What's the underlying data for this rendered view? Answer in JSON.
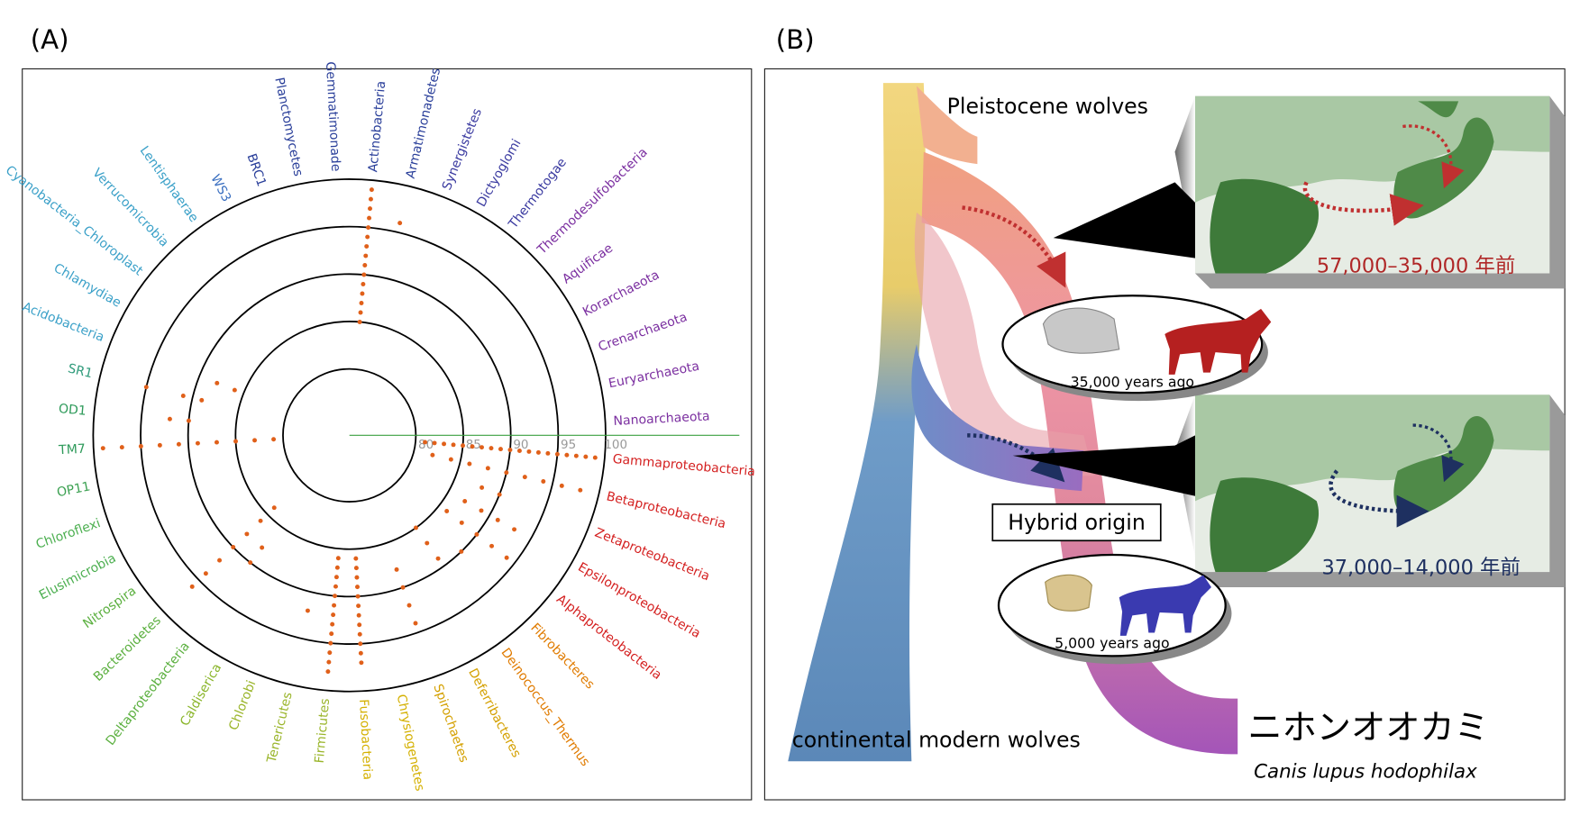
{
  "panel_a": {
    "label": "(A)",
    "chart_data": {
      "type": "radial",
      "rlim": [
        73,
        100
      ],
      "rings": [
        80,
        85,
        90,
        95,
        100
      ],
      "dot_color": "#e0601a",
      "taxa": [
        {
          "name": "Nanoarchaeota",
          "color": "#7b2fa0",
          "values": []
        },
        {
          "name": "Euryarchaeota",
          "color": "#7b2fa0",
          "values": []
        },
        {
          "name": "Crenarchaeota",
          "color": "#7b2fa0",
          "values": []
        },
        {
          "name": "Korarchaeota",
          "color": "#7b2fa0",
          "values": []
        },
        {
          "name": "Aquificae",
          "color": "#7b2fa0",
          "values": []
        },
        {
          "name": "Thermodesulfobacteria",
          "color": "#7b2fa0",
          "values": []
        },
        {
          "name": "Thermotogae",
          "color": "#3a3aa0",
          "values": []
        },
        {
          "name": "Dictyoglomi",
          "color": "#3a3aa0",
          "values": []
        },
        {
          "name": "Synergistetes",
          "color": "#3a3aa0",
          "values": []
        },
        {
          "name": "Armatimonadetes",
          "color": "#2a3f9a",
          "values": [
            96
          ]
        },
        {
          "name": "Actinobacteria",
          "color": "#2a3f9a",
          "values": [
            85,
            86,
            87,
            88,
            89,
            90,
            91,
            92,
            93,
            94,
            95,
            96,
            97,
            98,
            99
          ]
        },
        {
          "name": "Gemmatimonade",
          "color": "#2a3f9a",
          "values": []
        },
        {
          "name": "Planctomycetes",
          "color": "#2a3f9a",
          "values": []
        },
        {
          "name": "BRC1",
          "color": "#2a3f9a",
          "values": []
        },
        {
          "name": "WS3",
          "color": "#3a6fc0",
          "values": []
        },
        {
          "name": "Lentisphaerae",
          "color": "#3aa0c8",
          "values": []
        },
        {
          "name": "Verrucomicrobia",
          "color": "#3aa0c8",
          "values": []
        },
        {
          "name": "Cyanobacteria_Chloroplast",
          "color": "#3aa0c8",
          "values": []
        },
        {
          "name": "Chlamydiae",
          "color": "#3aa0c8",
          "values": []
        },
        {
          "name": "Acidobacteria",
          "color": "#3aa0c8",
          "values": [
            86,
            88
          ]
        },
        {
          "name": "SR1",
          "color": "#2e9a7a",
          "values": [
            89,
            91,
            95
          ]
        },
        {
          "name": "OD1",
          "color": "#2e9a5a",
          "values": [
            90,
            92
          ]
        },
        {
          "name": "TM7",
          "color": "#2e9a5a",
          "values": [
            81,
            83,
            85,
            87,
            89,
            91,
            93,
            95,
            97,
            99
          ]
        },
        {
          "name": "OP11",
          "color": "#3aa050",
          "values": []
        },
        {
          "name": "Chloroflexi",
          "color": "#4caf50",
          "values": []
        },
        {
          "name": "Elusimicrobia",
          "color": "#4caf50",
          "values": []
        },
        {
          "name": "Nitrospira",
          "color": "#5cb040",
          "values": []
        },
        {
          "name": "Bacteroidetes",
          "color": "#5cb040",
          "values": [
            84,
            86,
            88,
            90,
            92,
            94,
            96
          ]
        },
        {
          "name": "Deltaproteobacteria",
          "color": "#5cb040",
          "values": [
            88,
            90
          ]
        },
        {
          "name": "Caldiserica",
          "color": "#8ab52a",
          "values": []
        },
        {
          "name": "Chlorobi",
          "color": "#9ab52a",
          "values": []
        },
        {
          "name": "Tenericutes",
          "color": "#9ab52a",
          "values": [
            92
          ]
        },
        {
          "name": "Firmicutes",
          "color": "#9ab52a",
          "values": [
            86,
            87,
            88,
            89,
            90,
            91,
            92,
            93,
            94,
            95,
            96,
            97,
            98
          ]
        },
        {
          "name": "Fusobacteria",
          "color": "#d4b000",
          "values": [
            86,
            87,
            88,
            89,
            90,
            91,
            92,
            93,
            94,
            95,
            96,
            97
          ]
        },
        {
          "name": "Chrysiogenetes",
          "color": "#d4b000",
          "values": []
        },
        {
          "name": "Spirochaetes",
          "color": "#d4a000",
          "values": [
            88,
            90,
            92,
            94
          ]
        },
        {
          "name": "Deferribacteres",
          "color": "#d4a000",
          "values": []
        },
        {
          "name": "Deinococcus_Thermus",
          "color": "#e07b00",
          "values": [
            85,
            87,
            89
          ]
        },
        {
          "name": "Fibrobacteres",
          "color": "#e07b00",
          "values": [
            90
          ]
        },
        {
          "name": "Alphaproteobacteria",
          "color": "#d42020",
          "values": [
            86,
            88,
            90,
            92,
            94
          ]
        },
        {
          "name": "Epsilonproteobacteria",
          "color": "#d42020",
          "values": [
            87,
            89,
            91,
            93
          ]
        },
        {
          "name": "Zetaproteobacteria",
          "color": "#d42020",
          "values": [
            88,
            90
          ]
        },
        {
          "name": "Betaproteobacteria",
          "color": "#d42020",
          "values": [
            82,
            84,
            86,
            88,
            90,
            92,
            94,
            96,
            98
          ]
        },
        {
          "name": "Gammaproteobacteria",
          "color": "#d42020",
          "values": [
            81,
            82,
            83,
            84,
            85,
            86,
            87,
            88,
            89,
            90,
            91,
            92,
            93,
            94,
            95,
            96,
            97,
            98,
            99
          ]
        }
      ]
    }
  },
  "panel_b": {
    "label": "(B)",
    "pleistocene": "Pleistocene wolves",
    "map_top_period": "57,000–35,000 年前",
    "age_top": "35,000 years ago",
    "hybrid": "Hybrid origin",
    "map_bottom_period": "37,000–14,000 年前",
    "age_bottom": "5,000 years ago",
    "continental": "continental modern wolves",
    "name_jp": "ニホンオオカミ",
    "name_latin": "Canis lupus hodophilax"
  }
}
